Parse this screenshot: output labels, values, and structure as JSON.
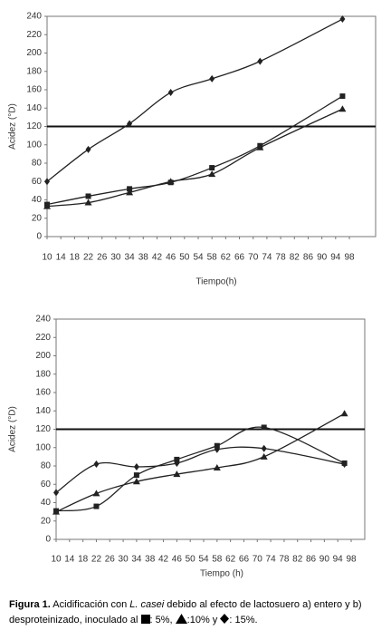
{
  "chart_data": [
    {
      "type": "line",
      "y_label": "Acidez (°D)",
      "x_label": "Tiempo(h)",
      "x": [
        10,
        22,
        34,
        46,
        58,
        72,
        96
      ],
      "xlim": [
        10,
        98
      ],
      "xticks": [
        10,
        14,
        18,
        22,
        26,
        30,
        34,
        38,
        42,
        46,
        50,
        54,
        58,
        62,
        66,
        70,
        74,
        78,
        82,
        86,
        90,
        94,
        98
      ],
      "ylim": [
        0,
        240
      ],
      "yticks": [
        0,
        20,
        40,
        60,
        80,
        100,
        120,
        140,
        160,
        180,
        200,
        220,
        240
      ],
      "reference_line": 120,
      "grid": false,
      "series": [
        {
          "marker": "square",
          "color": "#222",
          "values": [
            35,
            44,
            52,
            59,
            75,
            99,
            153
          ]
        },
        {
          "marker": "triangle",
          "color": "#222",
          "values": [
            33,
            37,
            48,
            60,
            68,
            97,
            139
          ]
        },
        {
          "marker": "diamond",
          "color": "#222",
          "values": [
            60,
            95,
            123,
            157,
            172,
            191,
            237
          ]
        }
      ]
    },
    {
      "type": "line",
      "y_label": "Acidez (°D)",
      "x_label": "Tiempo (h)",
      "x": [
        10,
        22,
        34,
        46,
        58,
        72,
        96
      ],
      "xlim": [
        10,
        98
      ],
      "xticks": [
        10,
        14,
        18,
        22,
        26,
        30,
        34,
        38,
        42,
        46,
        50,
        54,
        58,
        62,
        66,
        70,
        74,
        78,
        82,
        86,
        90,
        94,
        98
      ],
      "ylim": [
        0,
        240
      ],
      "yticks": [
        0,
        20,
        40,
        60,
        80,
        100,
        120,
        140,
        160,
        180,
        200,
        220,
        240
      ],
      "reference_line": 120,
      "grid": false,
      "series": [
        {
          "marker": "square",
          "color": "#222",
          "values": [
            31,
            36,
            70,
            87,
            102,
            122,
            83
          ]
        },
        {
          "marker": "triangle",
          "color": "#222",
          "values": [
            30,
            50,
            63,
            71,
            78,
            90,
            137
          ]
        },
        {
          "marker": "diamond",
          "color": "#222",
          "values": [
            51,
            82,
            79,
            83,
            98,
            99,
            82
          ]
        }
      ]
    }
  ],
  "caption": {
    "label": "Figura 1.",
    "text1": " Acidificación con ",
    "species": "L. casei",
    "text2": " debido al efecto de lactosuero a) entero y b) desproteinizado, inoculado al ",
    "pct1": ": 5%, ",
    "pct2": ":10% y ",
    "pct3": ": 15%."
  }
}
